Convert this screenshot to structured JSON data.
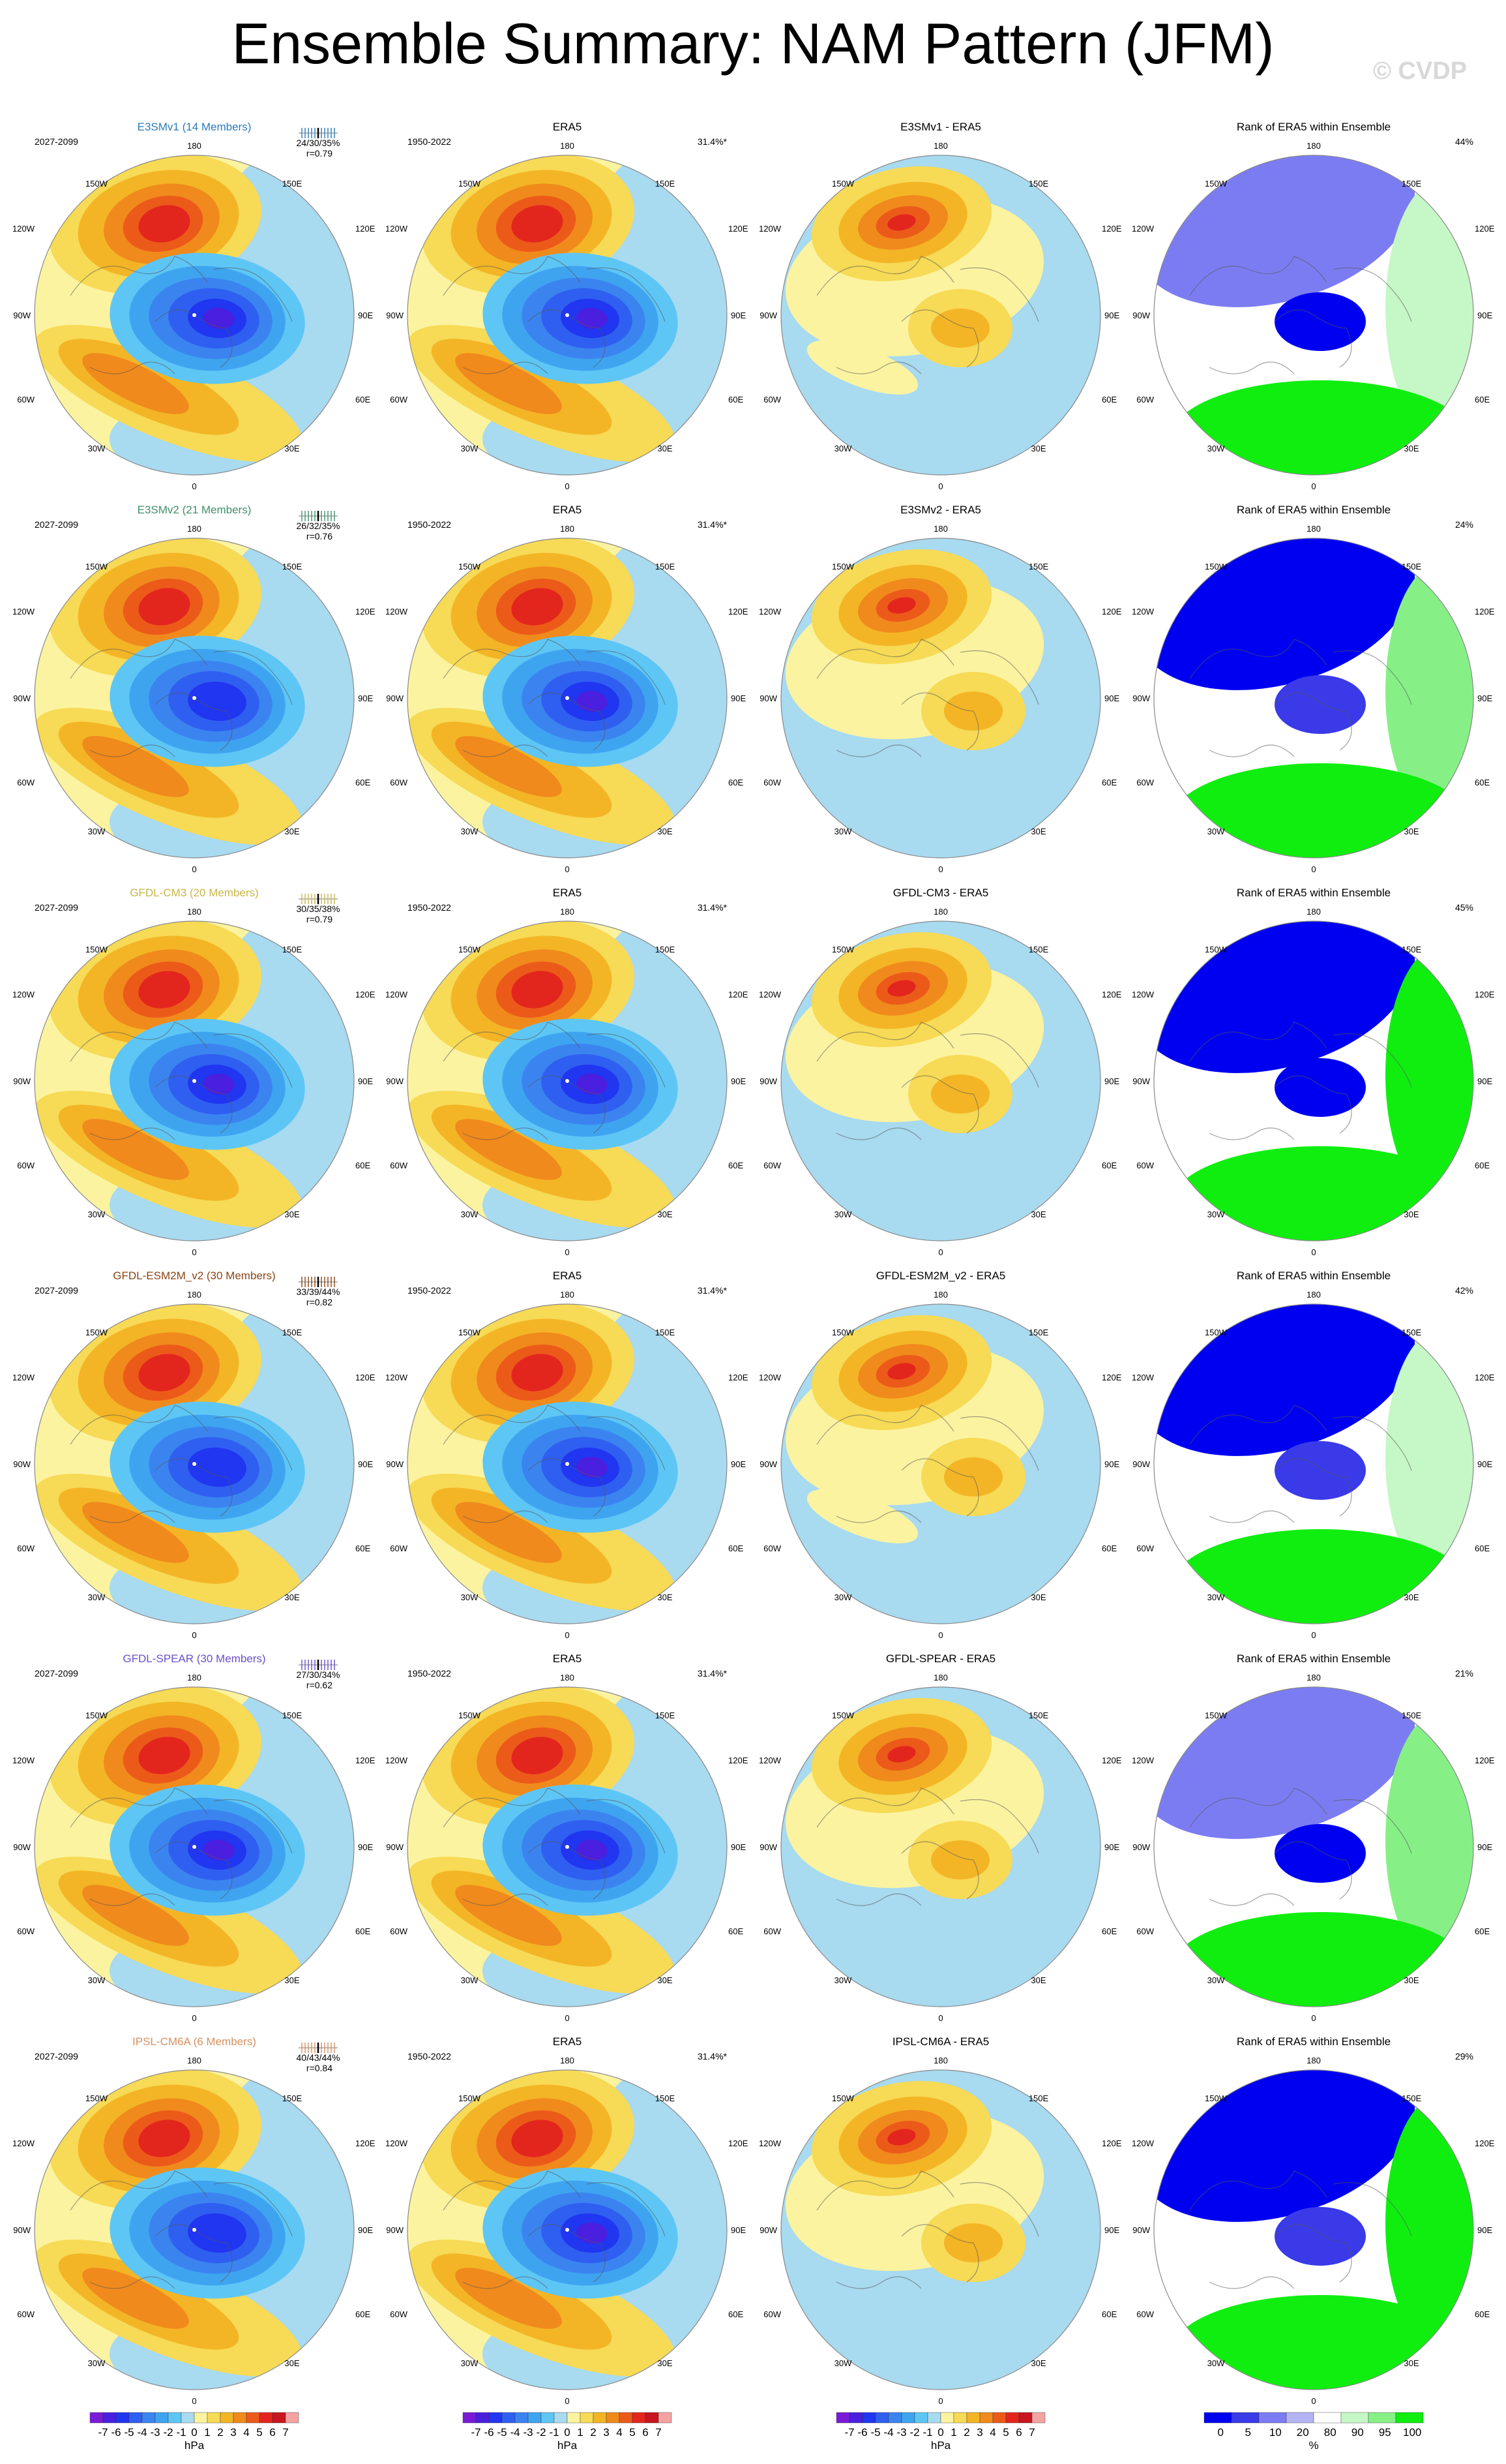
{
  "title": "Ensemble Summary: NAM Pattern (JFM)",
  "watermark": "© CVDP",
  "lon_labels": {
    "top": "180",
    "bottom": "0",
    "tl": "150W",
    "tr": "150E",
    "ul": "120W",
    "ur": "120E",
    "ml": "90W",
    "mr": "90E",
    "ll": "60W",
    "lr": "60E",
    "bl": "30W",
    "br": "30E"
  },
  "obs": {
    "title": "ERA5",
    "period": "1950-2022",
    "pct": "31.4%*"
  },
  "rank_title": "Rank of ERA5 within Ensemble",
  "rows": [
    {
      "model_title": "E3SMv1 (14 Members)",
      "title_color": "#2b7bb9",
      "period": "2027-2099",
      "stats": "24/30/35%",
      "corr": "r=0.79",
      "diff_title": "E3SMv1 - ERA5",
      "rank_pct": "44%"
    },
    {
      "model_title": "E3SMv2 (21 Members)",
      "title_color": "#3f8f6b",
      "period": "2027-2099",
      "stats": "26/32/35%",
      "corr": "r=0.76",
      "diff_title": "E3SMv2 - ERA5",
      "rank_pct": "24%"
    },
    {
      "model_title": "GFDL-CM3 (20 Members)",
      "title_color": "#c9b64a",
      "period": "2027-2099",
      "stats": "30/35/38%",
      "corr": "r=0.79",
      "diff_title": "GFDL-CM3 - ERA5",
      "rank_pct": "45%"
    },
    {
      "model_title": "GFDL-ESM2M_v2 (30 Members)",
      "title_color": "#8b4513",
      "period": "2027-2099",
      "stats": "33/39/44%",
      "corr": "r=0.82",
      "diff_title": "GFDL-ESM2M_v2 - ERA5",
      "rank_pct": "42%"
    },
    {
      "model_title": "GFDL-SPEAR (30 Members)",
      "title_color": "#6a4fc9",
      "period": "2027-2099",
      "stats": "27/30/34%",
      "corr": "r=0.62",
      "diff_title": "GFDL-SPEAR - ERA5",
      "rank_pct": "21%"
    },
    {
      "model_title": "IPSL-CM6A (6 Members)",
      "title_color": "#d89060",
      "period": "2027-2099",
      "stats": "40/43/44%",
      "corr": "r=0.84",
      "diff_title": "IPSL-CM6A - ERA5",
      "rank_pct": "29%"
    }
  ],
  "colorbar": {
    "labels": [
      "-7",
      "-6",
      "-5",
      "-4",
      "-3",
      "-2",
      "-1",
      "0",
      "1",
      "2",
      "3",
      "4",
      "5",
      "6",
      "7"
    ],
    "colors": [
      "#7a1bd8",
      "#4a1fe0",
      "#2036f0",
      "#2f5ff0",
      "#3b84f0",
      "#3fa4f0",
      "#5ec6f5",
      "#a8daf0",
      "#fbf3a0",
      "#f7da55",
      "#f3b526",
      "#f08a1c",
      "#ec5a1a",
      "#e3261d",
      "#c8151f",
      "#f4a3a3"
    ],
    "unit": "hPa"
  },
  "rank_colorbar": {
    "labels": [
      "0",
      "5",
      "10",
      "20",
      "80",
      "90",
      "95",
      "100"
    ],
    "colors": [
      "#0000f0",
      "#3a3ae8",
      "#7c7cf2",
      "#b4b4f4",
      "#ffffff",
      "#c6f7c6",
      "#86f086",
      "#10ee10"
    ],
    "unit": "%"
  }
}
